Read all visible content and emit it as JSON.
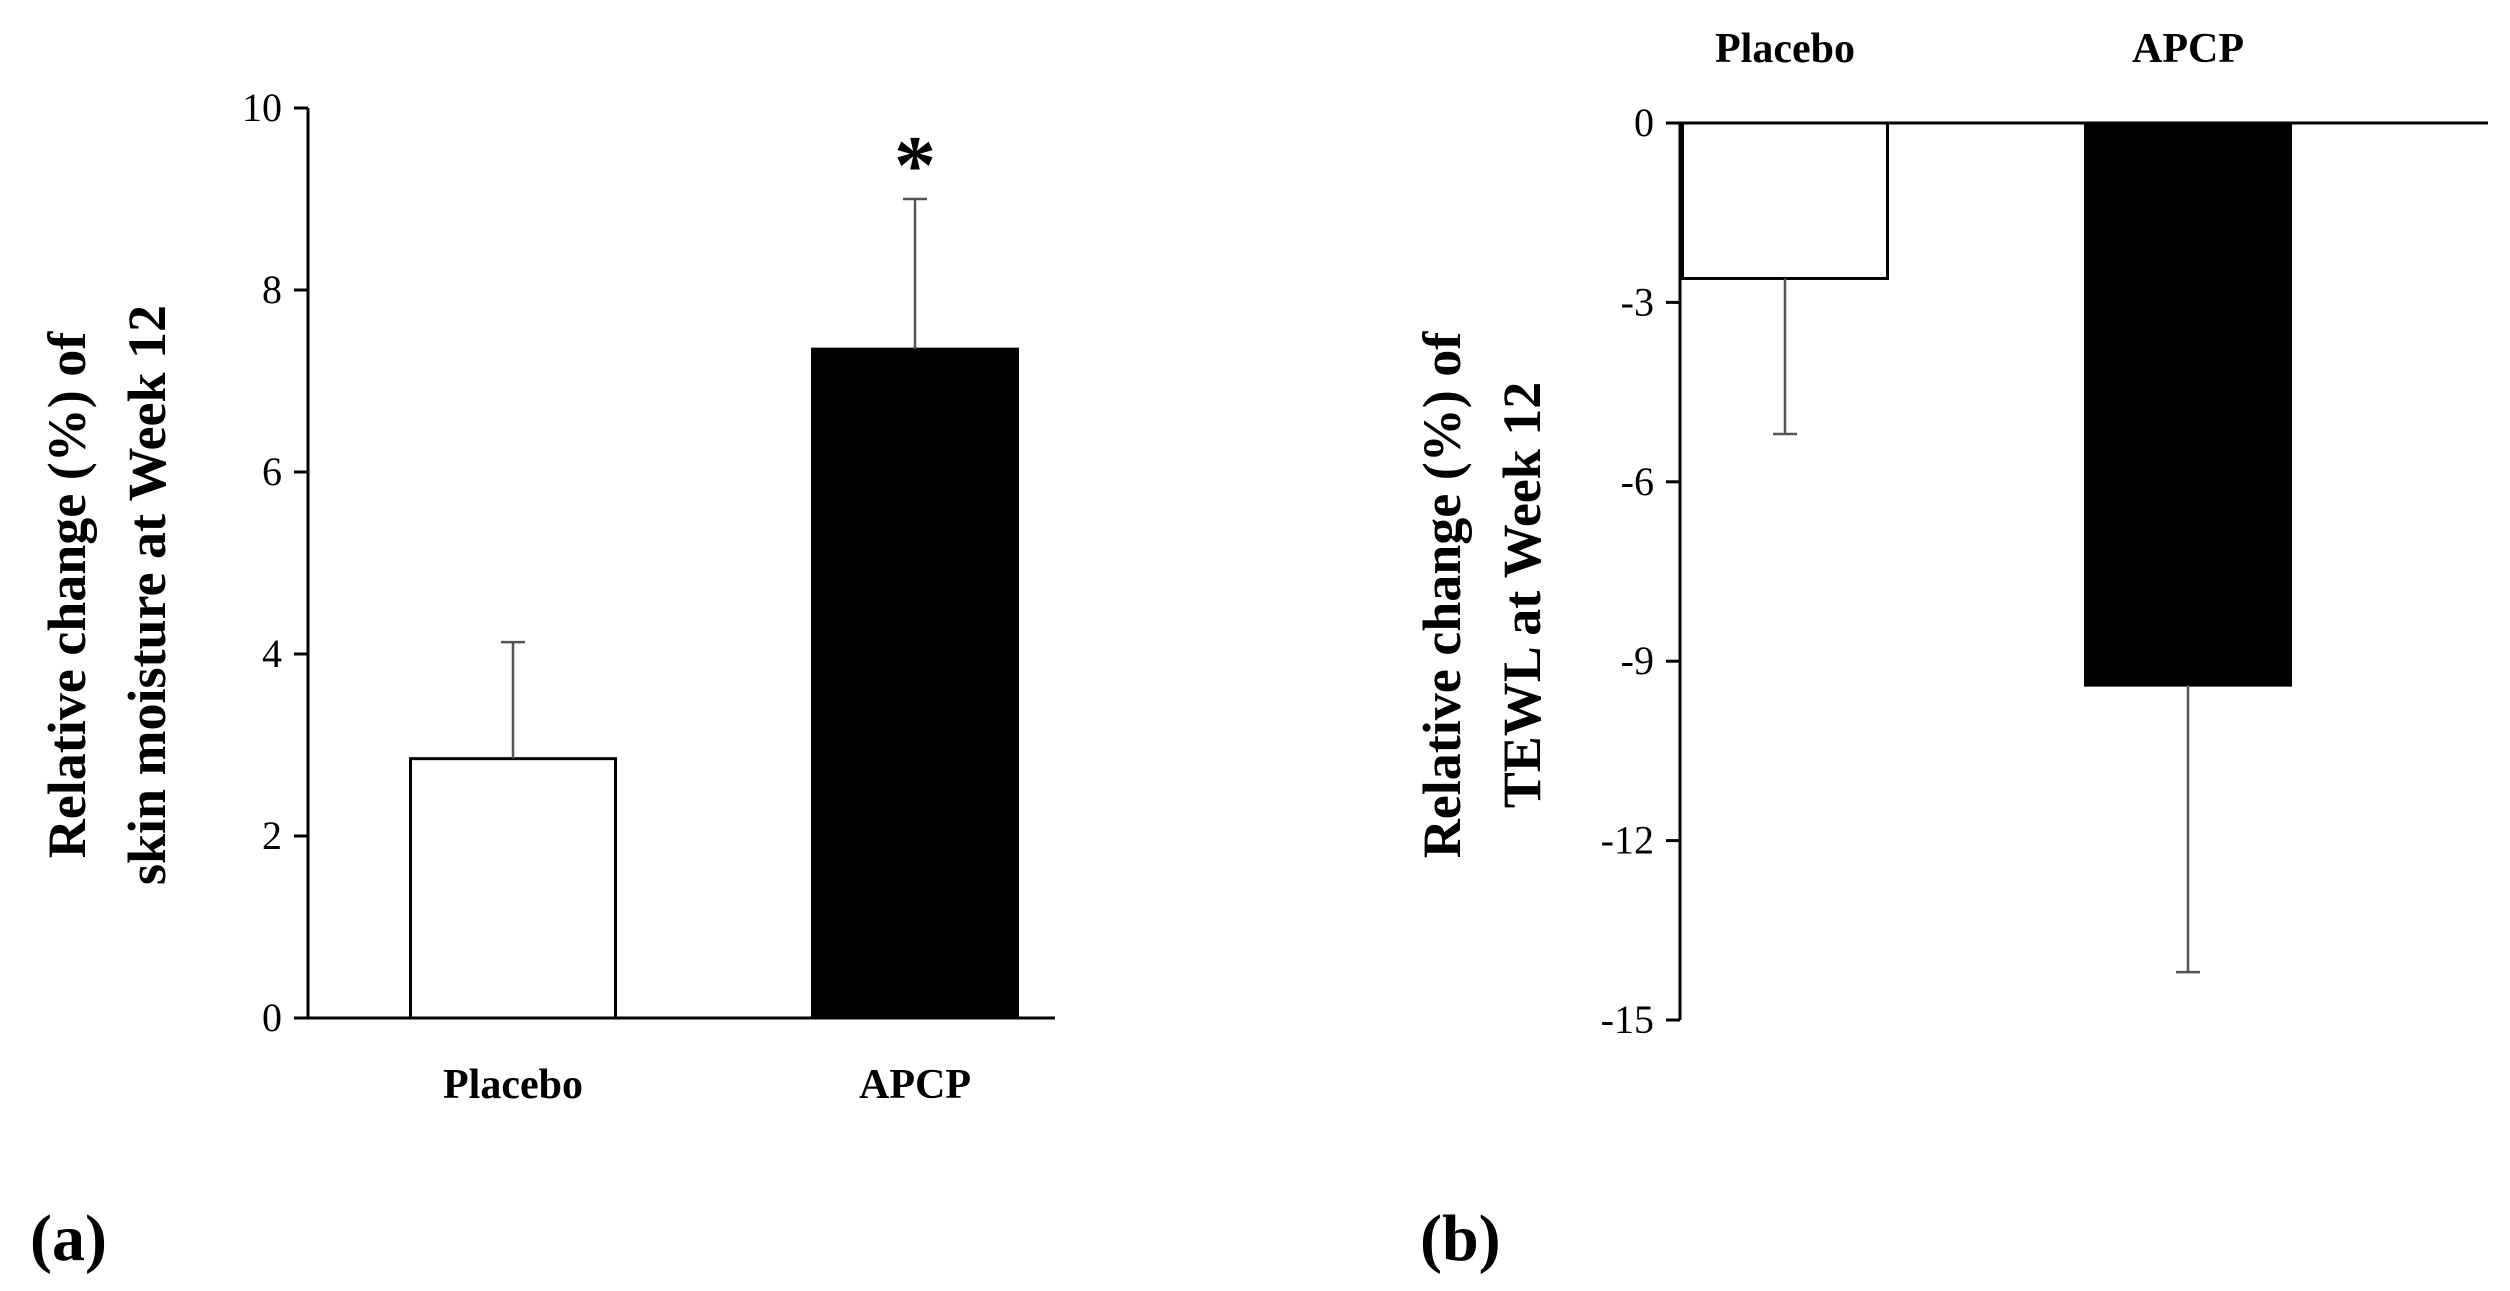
{
  "chart_data": [
    {
      "type": "bar",
      "panel_label": "(a)",
      "categories": [
        "Placebo",
        "APCP"
      ],
      "values": [
        2.85,
        7.35
      ],
      "error_up": [
        1.28,
        1.65
      ],
      "fills": [
        "#ffffff",
        "#000000"
      ],
      "ylim": [
        0,
        10
      ],
      "yticks": [
        0,
        2,
        4,
        6,
        8,
        10
      ],
      "ytick_labels": [
        "0",
        "2",
        "4",
        "6",
        "8",
        "10"
      ],
      "ylabel_line1": "Relative change (%) of",
      "ylabel_line2": "skin moisture at Week 12",
      "xlabel": "",
      "annotations": [
        {
          "category": "APCP",
          "text": "*"
        }
      ],
      "category_labels_position": "bottom"
    },
    {
      "type": "bar",
      "panel_label": "(b)",
      "categories": [
        "Placebo",
        "APCP"
      ],
      "values": [
        -2.6,
        -9.4
      ],
      "error_down": [
        2.6,
        4.8
      ],
      "fills": [
        "#ffffff",
        "#000000"
      ],
      "ylim": [
        -15,
        0
      ],
      "yticks": [
        0,
        -3,
        -6,
        -9,
        -12,
        -15
      ],
      "ytick_labels": [
        "0",
        "-3",
        "-6",
        "-9",
        "-12",
        "-15"
      ],
      "ylabel_line1": "Relative change (%) of",
      "ylabel_line2": "TEWL at Week 12",
      "xlabel": "",
      "annotations": [],
      "category_labels_position": "top"
    }
  ]
}
